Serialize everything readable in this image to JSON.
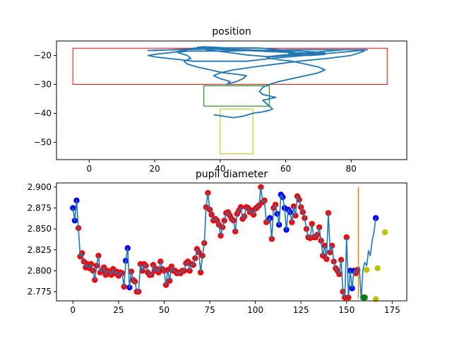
{
  "chart_data": [
    {
      "type": "line",
      "title": "position",
      "xlabel": "",
      "ylabel": "",
      "xlim": [
        -10,
        97
      ],
      "ylim": [
        -56,
        -15
      ],
      "xticks": [
        0,
        20,
        40,
        60,
        80
      ],
      "yticks": [
        -20,
        -30,
        -40,
        -50
      ],
      "grid": false,
      "series": [
        {
          "color": "#1f77b4",
          "x": [
            38,
            41,
            44,
            47,
            50,
            53,
            55,
            56,
            55,
            54,
            53,
            55,
            57,
            55,
            53,
            52,
            53,
            55,
            58,
            62,
            66,
            70,
            72,
            70,
            66,
            62,
            58,
            55,
            54,
            58,
            63,
            68,
            73,
            78,
            83,
            84,
            80,
            73,
            64,
            57,
            50,
            44,
            40,
            38,
            40,
            43,
            42,
            45,
            47,
            48,
            45,
            41,
            37,
            33,
            30,
            29,
            31,
            30,
            27,
            30,
            34,
            38,
            42,
            46,
            50,
            54,
            58,
            62,
            66,
            70,
            74,
            78,
            82,
            85,
            81,
            76,
            71,
            66,
            61,
            56,
            52,
            48,
            44,
            40,
            36,
            32,
            28,
            24,
            20,
            18,
            21,
            25,
            28,
            30,
            32,
            34,
            36,
            38,
            40,
            42,
            44,
            46,
            48,
            51,
            53,
            55,
            57,
            59,
            61,
            64,
            67,
            70,
            72,
            71,
            69,
            66,
            63,
            60,
            58,
            56,
            54,
            52,
            50,
            48,
            46,
            44,
            42,
            40,
            38,
            36,
            34,
            32,
            30,
            28,
            26,
            24,
            22,
            20,
            18,
            20,
            24,
            28,
            32,
            36,
            40,
            44,
            48,
            52,
            56,
            60,
            62,
            63,
            62,
            61,
            62,
            64,
            67,
            70,
            72,
            70,
            66,
            62,
            58,
            54,
            50,
            46,
            42,
            38,
            36,
            34,
            33,
            35,
            39,
            43
          ],
          "y": [
            -40.5,
            -41,
            -41.5,
            -41,
            -40,
            -39.5,
            -39,
            -38.5,
            -37.5,
            -36.5,
            -35.5,
            -35,
            -34.5,
            -34,
            -33.5,
            -32.5,
            -31,
            -30,
            -29,
            -28,
            -27,
            -26,
            -25,
            -24,
            -23,
            -22,
            -21.5,
            -21,
            -20.5,
            -20,
            -19.5,
            -19,
            -18.5,
            -18,
            -18,
            -18.5,
            -20,
            -21,
            -22,
            -23,
            -24,
            -25,
            -26,
            -27,
            -28,
            -29,
            -30,
            -29,
            -28,
            -27,
            -26.5,
            -26,
            -25,
            -24,
            -23,
            -22,
            -21,
            -20,
            -19,
            -18.5,
            -18.5,
            -18.5,
            -18.5,
            -18.4,
            -18.3,
            -18.2,
            -18.1,
            -18,
            -18,
            -18,
            -18,
            -18,
            -18,
            -18,
            -18.5,
            -19,
            -19.5,
            -20,
            -20.5,
            -21,
            -21.5,
            -22,
            -22,
            -22,
            -22,
            -22,
            -21.5,
            -21,
            -20.5,
            -20,
            -19.5,
            -19,
            -18.5,
            -18,
            -17.5,
            -17.5,
            -18,
            -18.3,
            -18.6,
            -18.9,
            -19.2,
            -19.5,
            -19.8,
            -20.1,
            -20.3,
            -20.5,
            -20.4,
            -20.2,
            -20.0,
            -19.8,
            -19.6,
            -19.4,
            -19.2,
            -19,
            -18.8,
            -18.6,
            -18.4,
            -18.2,
            -18.0,
            -17.8,
            -17.6,
            -17.5,
            -17.4,
            -17.4,
            -17.4,
            -17.4,
            -17.4,
            -17.4,
            -17.4,
            -17.5,
            -17.6,
            -17.7,
            -17.8,
            -17.9,
            -18.0,
            -18.1,
            -18.2,
            -18.3,
            -18.3,
            -18.2,
            -18.1,
            -18.0,
            -17.9,
            -17.8,
            -17.8,
            -17.9,
            -18.0,
            -18.2,
            -18.4,
            -18.6,
            -18.8,
            -19.0,
            -19.2,
            -19.4,
            -19.6,
            -19.8,
            -20.0,
            -19.8,
            -19.6,
            -19.4,
            -19.2,
            -19.0,
            -18.8,
            -18.6,
            -18.4,
            -18.2,
            -18.0,
            -17.8,
            -17.6,
            -17.4,
            -17.2,
            -17.0,
            -17.2,
            -17.5
          ]
        }
      ],
      "rectangles": [
        {
          "color": "#ff0000",
          "x0": -5,
          "x1": 91,
          "y0": -30,
          "y1": -17.5
        },
        {
          "color": "#008000",
          "x0": 35,
          "x1": 55,
          "y0": -37.5,
          "y1": -30.5
        },
        {
          "color": "#bfbf00",
          "x0": 40,
          "x1": 50,
          "y0": -54,
          "y1": -38.5
        }
      ]
    },
    {
      "type": "line",
      "title": "pupil diameter",
      "xlabel": "",
      "ylabel": "",
      "xlim": [
        -9,
        183
      ],
      "ylim": [
        2.764,
        2.905
      ],
      "xticks": [
        0,
        25,
        50,
        75,
        100,
        125,
        150,
        175
      ],
      "yticks": [
        2.775,
        2.8,
        2.825,
        2.85,
        2.875,
        2.9
      ],
      "grid": false,
      "line_color": "#1f77b4",
      "marker_colors": {
        "r": "#ff0000",
        "b": "#0000ff",
        "g": "#008000",
        "y": "#bfbf00"
      },
      "values": [
        2.875,
        2.86,
        2.884,
        2.851,
        2.817,
        2.821,
        2.811,
        2.804,
        2.808,
        2.803,
        2.808,
        2.8,
        2.789,
        2.806,
        2.818,
        2.798,
        2.8,
        2.804,
        2.795,
        2.8,
        2.799,
        2.795,
        2.802,
        2.797,
        2.799,
        2.794,
        2.798,
        2.797,
        2.781,
        2.812,
        2.827,
        2.78,
        2.799,
        2.789,
        2.787,
        2.775,
        2.775,
        2.808,
        2.8,
        2.808,
        2.806,
        2.798,
        2.795,
        2.795,
        2.807,
        2.8,
        2.802,
        2.798,
        2.811,
        2.802,
        2.8,
        2.783,
        2.801,
        2.788,
        2.805,
        2.8,
        2.8,
        2.797,
        2.798,
        2.797,
        2.8,
        2.8,
        2.809,
        2.811,
        2.8,
        2.808,
        2.807,
        2.815,
        2.826,
        2.822,
        2.798,
        2.818,
        2.833,
        2.876,
        2.893,
        2.873,
        2.867,
        2.86,
        2.862,
        2.86,
        2.855,
        2.842,
        2.852,
        2.86,
        2.869,
        2.87,
        2.866,
        2.862,
        2.86,
        2.847,
        2.868,
        2.872,
        2.876,
        2.862,
        2.865,
        2.876,
        2.875,
        2.87,
        2.872,
        2.867,
        2.874,
        2.876,
        2.878,
        2.9,
        2.882,
        2.884,
        2.858,
        2.86,
        2.863,
        2.838,
        2.875,
        2.879,
        2.868,
        2.855,
        2.891,
        2.888,
        2.875,
        2.849,
        2.873,
        2.87,
        2.858,
        2.877,
        2.866,
        2.889,
        2.885,
        2.876,
        2.87,
        2.863,
        2.85,
        2.84,
        2.839,
        2.856,
        2.84,
        2.84,
        2.843,
        2.852,
        2.836,
        2.818,
        2.83,
        2.814,
        2.869,
        2.822,
        2.83,
        2.811,
        2.803,
        2.8,
        2.796,
        2.813,
        2.775,
        2.768,
        2.84,
        2.768,
        2.8,
        2.779,
        2.8,
        2.797,
        2.801,
        2.804,
        2.766,
        2.802,
        2.81,
        2.806,
        2.824,
        2.818,
        2.836,
        2.846,
        2.863
      ],
      "marker_color_seq": "bbbrrrrrrrrrrrrrrrrrrrrrrrrrrbbbrrrrrrrrrrrrrrrrrrrrrrrrrrrrrrrrrrrrrrrrrrrrrrrrrrrrrrrrrrrrrrrrrrrrrrrrrrrrbrrrbbbbbbbbrrrrrrrrrrrrrrrrrrrrrrrrrrrrrrrrbbbrrgggyyyyyybbby",
      "vertical_line": {
        "color": "#ff7f0e",
        "x": 156.5,
        "y0": 2.767,
        "y1": 2.9
      },
      "green_markers": [
        [
          159,
          2.768
        ],
        [
          160,
          2.768
        ]
      ],
      "yellow_markers": [
        [
          161,
          2.801
        ],
        [
          166,
          2.766
        ],
        [
          167,
          2.803
        ],
        [
          171,
          2.846
        ]
      ]
    }
  ]
}
